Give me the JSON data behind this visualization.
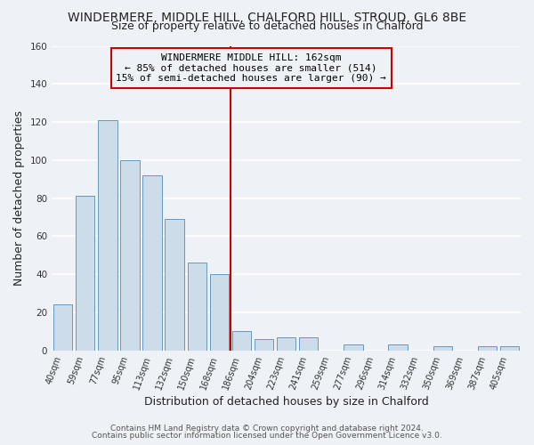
{
  "title": "WINDERMERE, MIDDLE HILL, CHALFORD HILL, STROUD, GL6 8BE",
  "subtitle": "Size of property relative to detached houses in Chalford",
  "xlabel": "Distribution of detached houses by size in Chalford",
  "ylabel": "Number of detached properties",
  "bar_labels": [
    "40sqm",
    "59sqm",
    "77sqm",
    "95sqm",
    "113sqm",
    "132sqm",
    "150sqm",
    "168sqm",
    "186sqm",
    "204sqm",
    "223sqm",
    "241sqm",
    "259sqm",
    "277sqm",
    "296sqm",
    "314sqm",
    "332sqm",
    "350sqm",
    "369sqm",
    "387sqm",
    "405sqm"
  ],
  "bar_heights": [
    24,
    81,
    121,
    100,
    92,
    69,
    46,
    40,
    10,
    6,
    7,
    7,
    0,
    3,
    0,
    3,
    0,
    2,
    0,
    2,
    2
  ],
  "bar_color": "#ccdce8",
  "bar_edge_color": "#6699bb",
  "vline_x": 7.5,
  "vline_color": "#cc0000",
  "annotation_text": "WINDERMERE MIDDLE HILL: 162sqm\n← 85% of detached houses are smaller (514)\n15% of semi-detached houses are larger (90) →",
  "annotation_box_edge": "#cc0000",
  "ylim": [
    0,
    160
  ],
  "yticks": [
    0,
    20,
    40,
    60,
    80,
    100,
    120,
    140,
    160
  ],
  "footer_line1": "Contains HM Land Registry data © Crown copyright and database right 2024.",
  "footer_line2": "Contains public sector information licensed under the Open Government Licence v3.0.",
  "background_color": "#eef2f6",
  "grid_color": "#ffffff",
  "title_fontsize": 10,
  "subtitle_fontsize": 9,
  "axis_label_fontsize": 9,
  "tick_fontsize": 7,
  "annotation_fontsize": 8,
  "footer_fontsize": 6.5
}
